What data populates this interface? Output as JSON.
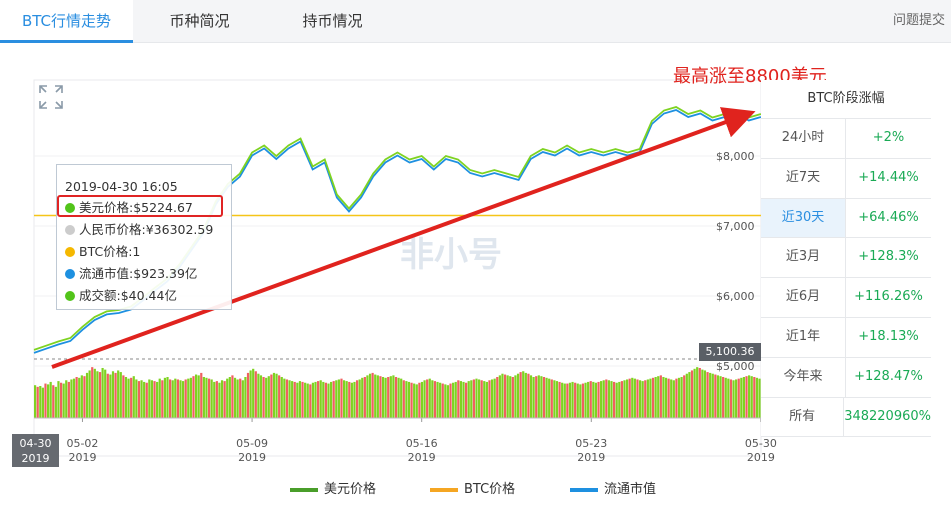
{
  "tabs": [
    {
      "label": "BTC行情走势",
      "active": true
    },
    {
      "label": "币种简况",
      "active": false
    },
    {
      "label": "持币情况",
      "active": false
    }
  ],
  "feedback_label": "问题提交",
  "watermark": "非小号",
  "annotation": "最高涨至8800美元",
  "tooltip": {
    "time": "2019-04-30 16:05",
    "rows": [
      {
        "label": "美元价格:$5224.67",
        "color": "#52c41a"
      },
      {
        "label": "人民币价格:¥36302.59",
        "color": "#cccccc"
      },
      {
        "label": "BTC价格:1",
        "color": "#f5b800"
      },
      {
        "label": "流通市值:$923.39亿",
        "color": "#1e90e0"
      },
      {
        "label": "成交额:$40.44亿",
        "color": "#52c41a"
      }
    ]
  },
  "performance": {
    "title": "BTC阶段涨幅",
    "rows": [
      {
        "label": "24小时",
        "value": "+2%",
        "active": false
      },
      {
        "label": "近7天",
        "value": "+14.44%",
        "active": false
      },
      {
        "label": "近30天",
        "value": "+64.46%",
        "active": true
      },
      {
        "label": "近3月",
        "value": "+128.3%",
        "active": false
      },
      {
        "label": "近6月",
        "value": "+116.26%",
        "active": false
      },
      {
        "label": "近1年",
        "value": "+18.13%",
        "active": false
      },
      {
        "label": "今年来",
        "value": "+128.47%",
        "active": false
      },
      {
        "label": "所有",
        "value": "348220960%",
        "active": false
      }
    ]
  },
  "start_badge": {
    "date": "04-30",
    "year": "2019"
  },
  "current_price_badge": "5,100.36",
  "legend": [
    {
      "label": "美元价格",
      "color": "#4a9e2a"
    },
    {
      "label": "BTC价格",
      "color": "#f5a623"
    },
    {
      "label": "流通市值",
      "color": "#1e90e0"
    }
  ],
  "colors": {
    "accent": "#2a8ee0",
    "price_line": "#7ed321",
    "mcap_line": "#1e90e0",
    "btc_line": "#f5c518",
    "arrow": "#e0231e",
    "positive": "#1aaa55",
    "volume_green": "#7ed321",
    "volume_red": "#f06060"
  },
  "chart_data": {
    "type": "line",
    "x_ticks": [
      {
        "day": "05-02",
        "year": "2019"
      },
      {
        "day": "05-09",
        "year": "2019"
      },
      {
        "day": "05-16",
        "year": "2019"
      },
      {
        "day": "05-23",
        "year": "2019"
      },
      {
        "day": "05-30",
        "year": "2019"
      }
    ],
    "y_ticks": [
      "$8,000",
      "$7,000",
      "$6,000",
      "$5,000"
    ],
    "ylim": [
      5000,
      8800
    ],
    "btc_reference_price": 7150,
    "series": [
      {
        "name": "美元价格",
        "x_day": [
          0,
          0.5,
          1,
          1.5,
          2,
          2.5,
          3,
          3.5,
          4,
          4.5,
          5,
          5.5,
          6,
          6.5,
          7,
          7.5,
          8,
          8.5,
          9,
          9.5,
          10,
          10.5,
          11,
          11.5,
          12,
          12.5,
          13,
          13.5,
          14,
          14.5,
          15,
          15.5,
          16,
          16.5,
          17,
          17.5,
          18,
          18.5,
          19,
          19.5,
          20,
          20.5,
          21,
          21.5,
          22,
          22.5,
          23,
          23.5,
          24,
          24.5,
          25,
          25.5,
          26,
          26.5,
          27,
          27.5,
          28,
          28.5,
          29,
          29.5,
          30
        ],
        "values": [
          5230,
          5290,
          5350,
          5400,
          5560,
          5700,
          5780,
          5800,
          5850,
          5980,
          6120,
          6250,
          6450,
          6700,
          6950,
          7350,
          7600,
          7750,
          8050,
          8150,
          8000,
          8150,
          8250,
          7850,
          7950,
          7450,
          7250,
          7450,
          7750,
          7950,
          8050,
          7950,
          8000,
          7850,
          8000,
          7950,
          7800,
          7750,
          7800,
          7750,
          7700,
          8000,
          8100,
          8050,
          8150,
          8050,
          8100,
          8050,
          8100,
          8050,
          8100,
          8500,
          8650,
          8700,
          8600,
          8650,
          8550,
          8600,
          8650,
          8550,
          8600
        ]
      }
    ],
    "volume": [
      40,
      38,
      39,
      37,
      42,
      41,
      44,
      40,
      38,
      45,
      43,
      42,
      46,
      44,
      47,
      48,
      50,
      49,
      52,
      51,
      55,
      58,
      62,
      60,
      57,
      56,
      61,
      59,
      54,
      53,
      57,
      55,
      58,
      56,
      52,
      50,
      48,
      49,
      51,
      47,
      45,
      46,
      44,
      43,
      47,
      46,
      45,
      44,
      48,
      46,
      49,
      50,
      47,
      46,
      48,
      47,
      46,
      45,
      47,
      48,
      49,
      51,
      53,
      52,
      55,
      50,
      49,
      48,
      47,
      44,
      45,
      43,
      46,
      45,
      48,
      50,
      52,
      49,
      47,
      48,
      46,
      50,
      55,
      58,
      60,
      57,
      54,
      52,
      50,
      49,
      51,
      53,
      55,
      54,
      52,
      50,
      48,
      47,
      46,
      45,
      44,
      43,
      45,
      44,
      43,
      42,
      41,
      43,
      44,
      45,
      46,
      44,
      43,
      42,
      44,
      45,
      46,
      47,
      48,
      46,
      45,
      44,
      43,
      44,
      46,
      47,
      49,
      50,
      52,
      54,
      55,
      53,
      52,
      51,
      50,
      49,
      50,
      51,
      52,
      50,
      49,
      48,
      46,
      45,
      44,
      43,
      42,
      41,
      43,
      44,
      46,
      47,
      48,
      46,
      45,
      44,
      43,
      42,
      41,
      40,
      42,
      43,
      44,
      46,
      45,
      44,
      43,
      45,
      46,
      47,
      48,
      47,
      46,
      45,
      44,
      46,
      47,
      48,
      50,
      52,
      54,
      53,
      52,
      51,
      50,
      52,
      54,
      56,
      57,
      55,
      54,
      52,
      50,
      51,
      52,
      51,
      50,
      49,
      48,
      47,
      46,
      45,
      44,
      43,
      42,
      42,
      43,
      44,
      43,
      42,
      41,
      42,
      43,
      44,
      45,
      44,
      43,
      44,
      45,
      46,
      47,
      46,
      45,
      44,
      43,
      44,
      45,
      46,
      47,
      48,
      49,
      48,
      47,
      46,
      45,
      46,
      47,
      48,
      49,
      50,
      51,
      52,
      50,
      49,
      48,
      47,
      46,
      48,
      49,
      50,
      52,
      54,
      56,
      58,
      60,
      62,
      61,
      59,
      58,
      56,
      55,
      54,
      53,
      52,
      51,
      50,
      49,
      48,
      47,
      46,
      47,
      48,
      49,
      50,
      51,
      52,
      51,
      50,
      49,
      48
    ]
  }
}
